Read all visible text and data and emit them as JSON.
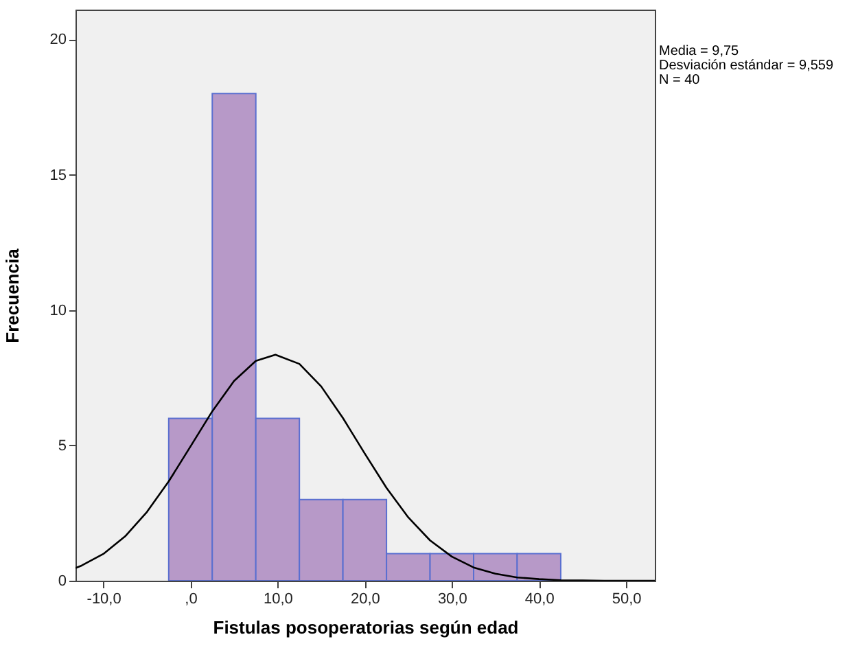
{
  "chart_data": {
    "type": "histogram",
    "xlabel": "Fistulas posoperatorias según edad",
    "ylabel": "Frecuencia",
    "bins": [
      -2.5,
      2.5,
      7.5,
      12.5,
      17.5,
      22.5,
      27.5,
      32.5,
      37.5,
      42.5
    ],
    "values": [
      6,
      18,
      6,
      3,
      3,
      1,
      1,
      1,
      1
    ],
    "color": "#b799c8",
    "series": [
      {
        "type": "line",
        "color": "#000000",
        "x": [
          -13.2,
          -12.5,
          -10,
          -7.5,
          -5,
          -2.5,
          0,
          2.5,
          5,
          7.5,
          9.75,
          12.5,
          15,
          17.5,
          20,
          22.5,
          25,
          27.5,
          30,
          32.5,
          35,
          37.5,
          40,
          42.5,
          45,
          47.5,
          50,
          53.3
        ],
        "values": [
          0.47,
          0.56,
          0.99,
          1.64,
          2.54,
          3.67,
          4.96,
          6.26,
          7.38,
          8.12,
          8.35,
          8.01,
          7.18,
          6.01,
          4.7,
          3.43,
          2.34,
          1.49,
          0.89,
          0.49,
          0.26,
          0.12,
          0.06,
          0.02,
          0.01,
          0,
          0,
          0
        ]
      }
    ],
    "xlim": [
      -13.2,
      53.3
    ],
    "xticks": [
      {
        "value": -10,
        "label": "-10,0"
      },
      {
        "value": 0,
        "label": ",0"
      },
      {
        "value": 10,
        "label": "10,0"
      },
      {
        "value": 20,
        "label": "20,0"
      },
      {
        "value": 30,
        "label": "30,0"
      },
      {
        "value": 40,
        "label": "40,0"
      },
      {
        "value": 50,
        "label": "50,0"
      }
    ],
    "ylim": [
      0,
      21.1
    ],
    "yticks": [
      0,
      5,
      10,
      15,
      20
    ],
    "grid": false,
    "annotations": [
      "Media = 9,75",
      "Desviación estándar = 9,559",
      "N = 40"
    ]
  }
}
